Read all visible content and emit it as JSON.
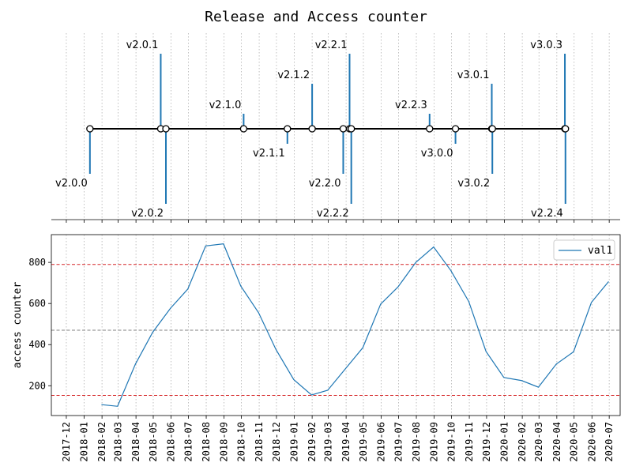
{
  "title": "Release and Access counter",
  "chart_data": [
    {
      "type": "timeline",
      "x_axis": "date",
      "xlim": [
        "2017-11-05",
        "2020-07-20"
      ],
      "grid": "vertical dotted, monthly",
      "marker_color": "#1f77b4",
      "releases": [
        {
          "version": "v2.0.0",
          "date": "2018-01-11",
          "level": -3
        },
        {
          "version": "v2.0.1",
          "date": "2018-05-14",
          "level": 5
        },
        {
          "version": "v2.0.2",
          "date": "2018-05-23",
          "level": -5
        },
        {
          "version": "v2.1.0",
          "date": "2018-10-05",
          "level": 1
        },
        {
          "version": "v2.1.1",
          "date": "2018-12-20",
          "level": -1
        },
        {
          "version": "v2.1.2",
          "date": "2019-02-01",
          "level": 3
        },
        {
          "version": "v2.2.0",
          "date": "2019-03-27",
          "level": -3
        },
        {
          "version": "v2.2.1",
          "date": "2019-04-07",
          "level": 5
        },
        {
          "version": "v2.2.2",
          "date": "2019-04-10",
          "level": -5
        },
        {
          "version": "v2.2.3",
          "date": "2019-08-24",
          "level": 1
        },
        {
          "version": "v3.0.0",
          "date": "2019-10-08",
          "level": -1
        },
        {
          "version": "v3.0.1",
          "date": "2019-12-10",
          "level": 3
        },
        {
          "version": "v3.0.2",
          "date": "2019-12-11",
          "level": -3
        },
        {
          "version": "v3.0.3",
          "date": "2020-04-15",
          "level": 5
        },
        {
          "version": "v2.2.4",
          "date": "2020-04-16",
          "level": -5
        }
      ]
    },
    {
      "type": "line",
      "x_axis": "date",
      "ylabel": "access counter",
      "xlim": [
        "2017-11-05",
        "2020-07-20"
      ],
      "ylim": [
        55,
        935
      ],
      "yticks": [
        200,
        400,
        600,
        800
      ],
      "xticks": [
        "2017-12",
        "2018-01",
        "2018-02",
        "2018-03",
        "2018-04",
        "2018-05",
        "2018-06",
        "2018-07",
        "2018-08",
        "2018-09",
        "2018-10",
        "2018-11",
        "2018-12",
        "2019-01",
        "2019-02",
        "2019-03",
        "2019-04",
        "2019-05",
        "2019-06",
        "2019-07",
        "2019-08",
        "2019-09",
        "2019-10",
        "2019-11",
        "2019-12",
        "2020-01",
        "2020-02",
        "2020-03",
        "2020-04",
        "2020-05",
        "2020-06",
        "2020-07"
      ],
      "series": [
        {
          "name": "val1",
          "color": "#1f77b4",
          "x": [
            "2018-01-31",
            "2018-02-28",
            "2018-03-31",
            "2018-04-30",
            "2018-05-31",
            "2018-06-30",
            "2018-07-31",
            "2018-08-31",
            "2018-09-30",
            "2018-10-31",
            "2018-11-30",
            "2018-12-31",
            "2019-01-31",
            "2019-02-28",
            "2019-03-31",
            "2019-04-30",
            "2019-05-31",
            "2019-06-30",
            "2019-07-31",
            "2019-08-31",
            "2019-09-30",
            "2019-10-31",
            "2019-11-30",
            "2019-12-31",
            "2020-01-31",
            "2020-02-29",
            "2020-03-31",
            "2020-04-30",
            "2020-05-31",
            "2020-06-30"
          ],
          "values": [
            108,
            100,
            305,
            460,
            577,
            670,
            880,
            890,
            685,
            555,
            377,
            230,
            155,
            178,
            283,
            385,
            597,
            680,
            800,
            875,
            760,
            610,
            367,
            240,
            225,
            193,
            305,
            365,
            605,
            707
          ]
        }
      ],
      "hlines": [
        {
          "y": 470,
          "color": "#808080",
          "style": "dashed"
        },
        {
          "y": 790,
          "color": "#d62728",
          "style": "dashed"
        },
        {
          "y": 153,
          "color": "#d62728",
          "style": "dashed"
        }
      ],
      "legend": "top-right",
      "grid": "vertical dotted, monthly"
    }
  ]
}
